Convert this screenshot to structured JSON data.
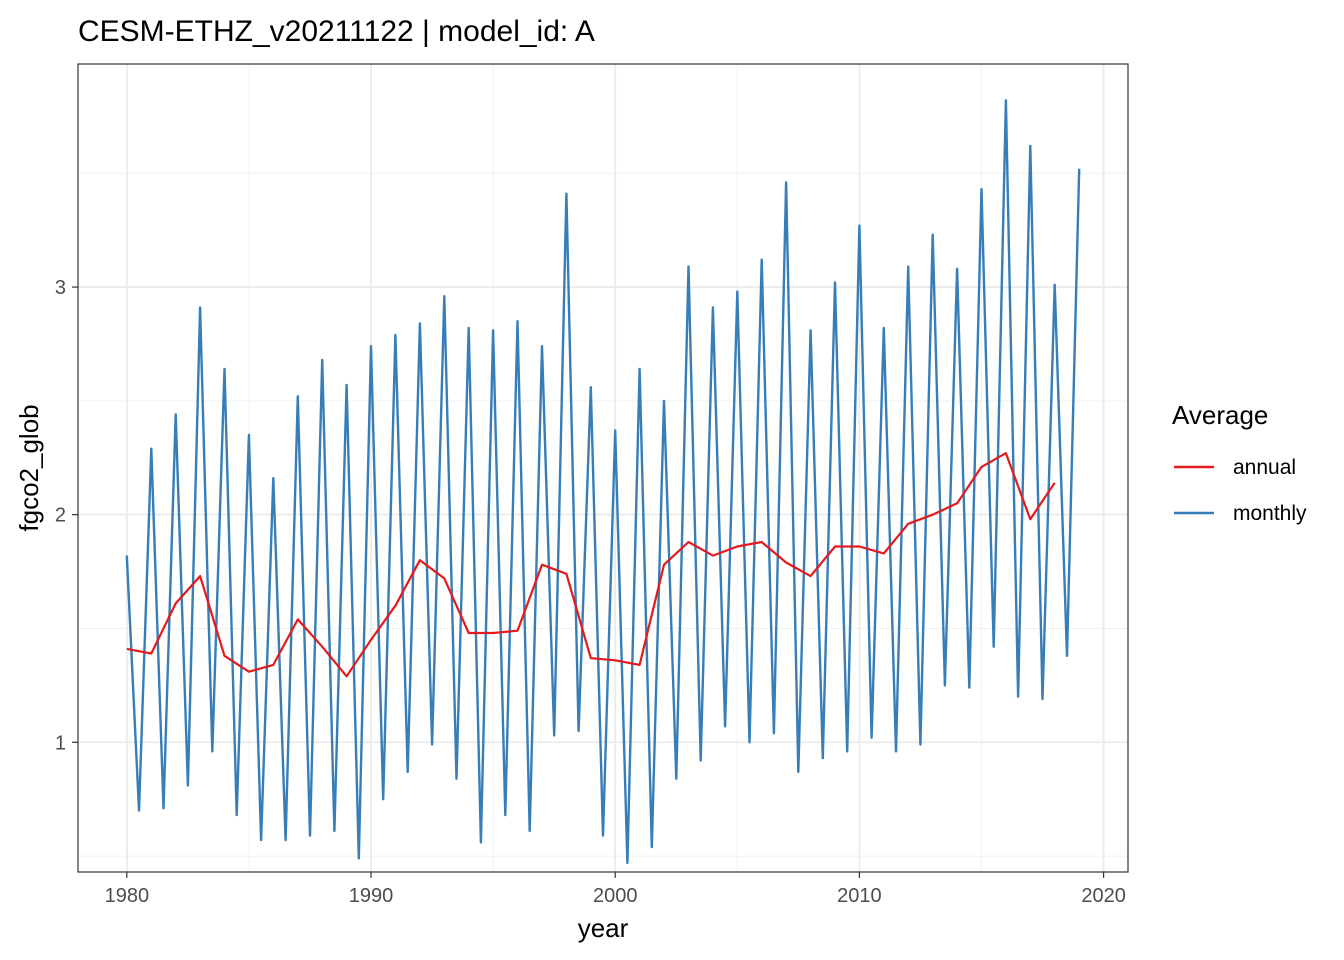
{
  "chart_data": {
    "type": "line",
    "title": "CESM-ETHZ_v20211122 | model_id: A",
    "xlabel": "year",
    "ylabel": "fgco2_glob",
    "xlim": [
      1978,
      2021
    ],
    "ylim": [
      0.43,
      3.98
    ],
    "x_ticks": [
      1980,
      1990,
      2000,
      2010,
      2020
    ],
    "x_tick_labels": [
      "1980",
      "1990",
      "2000",
      "2010",
      "2020"
    ],
    "y_ticks": [
      1,
      2,
      3
    ],
    "y_tick_labels": [
      "1",
      "2",
      "3"
    ],
    "grid": true,
    "legend": {
      "title": "Average",
      "position": "right",
      "entries": [
        {
          "name": "annual",
          "color": "#e41a1c"
        },
        {
          "name": "monthly",
          "color": "#377eb8"
        }
      ]
    },
    "series": [
      {
        "name": "monthly",
        "color": "#377eb8",
        "x": [
          1980.0,
          1980.5,
          1981.0,
          1981.5,
          1982.0,
          1982.5,
          1983.0,
          1983.5,
          1984.0,
          1984.5,
          1985.0,
          1985.5,
          1986.0,
          1986.5,
          1987.0,
          1987.5,
          1988.0,
          1988.5,
          1989.0,
          1989.5,
          1990.0,
          1990.5,
          1991.0,
          1991.5,
          1992.0,
          1992.5,
          1993.0,
          1993.5,
          1994.0,
          1994.5,
          1995.0,
          1995.5,
          1996.0,
          1996.5,
          1997.0,
          1997.5,
          1998.0,
          1998.5,
          1999.0,
          1999.5,
          2000.0,
          2000.5,
          2001.0,
          2001.5,
          2002.0,
          2002.5,
          2003.0,
          2003.5,
          2004.0,
          2004.5,
          2005.0,
          2005.5,
          2006.0,
          2006.5,
          2007.0,
          2007.5,
          2008.0,
          2008.5,
          2009.0,
          2009.5,
          2010.0,
          2010.5,
          2011.0,
          2011.5,
          2012.0,
          2012.5,
          2013.0,
          2013.5,
          2014.0,
          2014.5,
          2015.0,
          2015.5,
          2016.0,
          2016.5,
          2017.0,
          2017.5,
          2018.0,
          2018.5,
          2019.0
        ],
        "values": [
          1.82,
          0.7,
          2.29,
          0.71,
          2.44,
          0.81,
          2.91,
          0.96,
          2.64,
          0.68,
          2.35,
          0.57,
          2.16,
          0.57,
          2.52,
          0.59,
          2.68,
          0.61,
          2.57,
          0.49,
          2.74,
          0.75,
          2.79,
          0.87,
          2.84,
          0.99,
          2.96,
          0.84,
          2.82,
          0.56,
          2.81,
          0.68,
          2.85,
          0.61,
          2.74,
          1.03,
          3.41,
          1.05,
          2.56,
          0.59,
          2.37,
          0.47,
          2.64,
          0.54,
          2.5,
          0.84,
          3.09,
          0.92,
          2.91,
          1.07,
          2.98,
          1.0,
          3.12,
          1.04,
          3.46,
          0.87,
          2.81,
          0.93,
          3.02,
          0.96,
          3.27,
          1.02,
          2.82,
          0.96,
          3.09,
          0.99,
          3.23,
          1.25,
          3.08,
          1.24,
          3.43,
          1.42,
          3.82,
          1.2,
          3.62,
          1.19,
          3.01,
          1.38,
          3.52
        ]
      },
      {
        "name": "annual",
        "color": "#e41a1c",
        "x": [
          1980,
          1981,
          1982,
          1983,
          1984,
          1985,
          1986,
          1987,
          1988,
          1989,
          1990,
          1991,
          1992,
          1993,
          1994,
          1995,
          1996,
          1997,
          1998,
          1999,
          2000,
          2001,
          2002,
          2003,
          2004,
          2005,
          2006,
          2007,
          2008,
          2009,
          2010,
          2011,
          2012,
          2013,
          2014,
          2015,
          2016,
          2017,
          2018
        ],
        "values": [
          1.41,
          1.39,
          1.61,
          1.73,
          1.38,
          1.31,
          1.34,
          1.54,
          1.42,
          1.29,
          1.45,
          1.6,
          1.8,
          1.72,
          1.48,
          1.48,
          1.49,
          1.78,
          1.74,
          1.37,
          1.36,
          1.34,
          1.78,
          1.88,
          1.82,
          1.86,
          1.88,
          1.79,
          1.73,
          1.86,
          1.86,
          1.83,
          1.96,
          2.0,
          2.05,
          2.21,
          2.27,
          1.98,
          2.14
        ]
      }
    ]
  }
}
